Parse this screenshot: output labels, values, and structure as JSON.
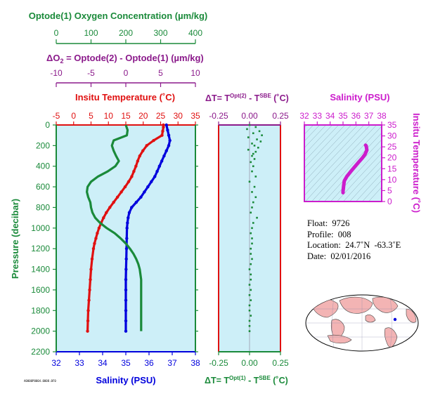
{
  "colors": {
    "oxygen": "#1a8a3a",
    "delta_o2": "#8b1a8b",
    "temperature": "#e01010",
    "salinity": "#0000dd",
    "ts_plot": "#cc1ccc",
    "panel_bg": "#cdeff8",
    "land": "#f3b4b4"
  },
  "info": {
    "float_label": "Float:",
    "float_value": "9726",
    "profile_label": "Profile:",
    "profile_value": "008",
    "location_label": "Location:",
    "location_value": "24.7˚N  -63.3˚E",
    "date_label": "Date:",
    "date_value": "02/01/2016"
  },
  "footer_text": "A0000P0004.0008.0F0",
  "chart_data": [
    {
      "type": "line",
      "panel": "main-profile",
      "ylabel": "Pressure (decibar)",
      "ylim": [
        0,
        2200
      ],
      "y_ticks": [
        0,
        200,
        400,
        600,
        800,
        1000,
        1200,
        1400,
        1600,
        1800,
        2000,
        2200
      ],
      "axes": {
        "oxygen": {
          "label": "Optode(1) Oxygen Concentration (µm/kg)",
          "range": [
            0,
            400
          ],
          "ticks": [
            0,
            100,
            200,
            300,
            400
          ]
        },
        "delta_o2": {
          "label_parts": [
            "ΔO",
            "2",
            " = Optode(2) - Optode(1)    (µm/kg)"
          ],
          "range": [
            -10,
            10
          ],
          "ticks": [
            -10,
            -5,
            0,
            5,
            10
          ]
        },
        "temperature": {
          "label": "Insitu Temperature (˚C)",
          "range": [
            -5,
            35
          ],
          "ticks": [
            -5,
            0,
            5,
            10,
            15,
            20,
            25,
            30,
            35
          ]
        },
        "salinity": {
          "label": "Salinity (PSU)",
          "range": [
            32,
            38
          ],
          "ticks": [
            32,
            33,
            34,
            35,
            36,
            37,
            38
          ]
        }
      },
      "series": [
        {
          "key": "temperature",
          "p": [
            0,
            20,
            60,
            100,
            150,
            200,
            250,
            300,
            350,
            400,
            450,
            500,
            550,
            600,
            650,
            700,
            750,
            800,
            850,
            900,
            950,
            1000,
            1050,
            1100,
            1150,
            1200,
            1300,
            1400,
            1500,
            1600,
            1700,
            1800,
            1900,
            2000
          ],
          "v": [
            25.8,
            25.8,
            25.6,
            25.4,
            23.0,
            21.0,
            19.9,
            19.0,
            18.4,
            17.9,
            17.3,
            16.7,
            15.8,
            14.8,
            13.7,
            12.6,
            11.5,
            10.4,
            9.4,
            8.6,
            7.9,
            7.3,
            6.8,
            6.4,
            6.0,
            5.7,
            5.3,
            5.0,
            4.8,
            4.6,
            4.4,
            4.2,
            4.1,
            4.0
          ]
        },
        {
          "key": "salinity",
          "p": [
            0,
            50,
            100,
            150,
            200,
            250,
            300,
            350,
            400,
            450,
            500,
            550,
            600,
            650,
            700,
            750,
            800,
            850,
            900,
            950,
            1000,
            1100,
            1200,
            1300,
            1400,
            1500,
            1600,
            1700,
            1800,
            1900,
            2000
          ],
          "v": [
            36.75,
            36.8,
            36.85,
            36.9,
            36.85,
            36.75,
            36.65,
            36.55,
            36.45,
            36.35,
            36.25,
            36.1,
            35.95,
            35.8,
            35.65,
            35.45,
            35.25,
            35.15,
            35.1,
            35.07,
            35.05,
            35.04,
            35.03,
            35.02,
            35.01,
            35.0,
            35.0,
            35.0,
            35.0,
            35.0,
            35.0
          ]
        },
        {
          "key": "oxygen",
          "p": [
            0,
            50,
            100,
            150,
            200,
            250,
            300,
            350,
            400,
            450,
            500,
            550,
            600,
            650,
            700,
            750,
            800,
            850,
            900,
            950,
            1000,
            1050,
            1100,
            1150,
            1200,
            1250,
            1300,
            1350,
            1400,
            1450,
            1500,
            1600,
            1700,
            1800,
            1900,
            2000
          ],
          "v": [
            200,
            205,
            203,
            165,
            160,
            165,
            172,
            180,
            170,
            148,
            120,
            100,
            90,
            88,
            92,
            98,
            100,
            104,
            112,
            126,
            145,
            168,
            185,
            200,
            212,
            222,
            230,
            236,
            240,
            242,
            244,
            244,
            244,
            244,
            244,
            244
          ]
        }
      ]
    },
    {
      "type": "scatter",
      "panel": "delta-t",
      "top_label_parts": [
        "ΔT= T",
        "Opt(2)",
        " - T",
        "SBE",
        " (˚C)"
      ],
      "bottom_label_parts": [
        "ΔT= T",
        "Opt(1)",
        " - T",
        "SBE",
        " (˚C)"
      ],
      "xlim": [
        -0.25,
        0.25
      ],
      "ticks": [
        -0.25,
        0,
        0.25
      ],
      "tick_labels": [
        "-0.25",
        "0.00",
        "0.25"
      ],
      "ylim": [
        0,
        2200
      ],
      "points": {
        "p": [
          0,
          20,
          40,
          60,
          80,
          100,
          120,
          140,
          160,
          180,
          200,
          220,
          240,
          260,
          280,
          300,
          330,
          360,
          400,
          450,
          500,
          550,
          600,
          650,
          700,
          750,
          800,
          850,
          900,
          950,
          1000,
          1050,
          1100,
          1150,
          1200,
          1250,
          1300,
          1350,
          1400,
          1450,
          1500,
          1550,
          1600,
          1650,
          1700,
          1750,
          1800,
          1850,
          1900,
          1950,
          2000
        ],
        "dt": [
          0.0,
          0.05,
          -0.02,
          0.08,
          0.03,
          0.1,
          -0.01,
          0.06,
          0.09,
          0.02,
          0.04,
          0.07,
          -0.01,
          0.05,
          0.03,
          0.02,
          0.04,
          0.01,
          0.03,
          0.02,
          0.05,
          0.0,
          0.04,
          0.02,
          0.05,
          0.03,
          0.02,
          0.01,
          0.06,
          0.03,
          0.02,
          0.01,
          0.02,
          0.02,
          0.01,
          0.01,
          0.02,
          0.01,
          0.0,
          0.01,
          0.01,
          0.0,
          0.01,
          0.0,
          0.01,
          0.0,
          0.0,
          0.01,
          0.0,
          0.0,
          0.0
        ]
      }
    },
    {
      "type": "line",
      "panel": "ts-diagram",
      "xlabel": "Salinity (PSU)",
      "ylabel": "Insitu Temperature (˚C)",
      "xlim": [
        32,
        38
      ],
      "ylim": [
        0,
        35
      ],
      "x_ticks": [
        32,
        33,
        34,
        35,
        36,
        37,
        38
      ],
      "y_ticks": [
        0,
        5,
        10,
        15,
        20,
        25,
        30,
        35
      ],
      "grid": "density contours",
      "x": [
        35.0,
        35.0,
        35.02,
        35.05,
        35.1,
        35.3,
        35.6,
        35.9,
        36.2,
        36.5,
        36.7,
        36.85,
        36.8,
        36.75
      ],
      "y": [
        4.0,
        4.8,
        5.7,
        7.3,
        9.4,
        11.5,
        13.7,
        15.8,
        17.9,
        19.9,
        21.5,
        23.5,
        25.4,
        25.8
      ]
    }
  ]
}
